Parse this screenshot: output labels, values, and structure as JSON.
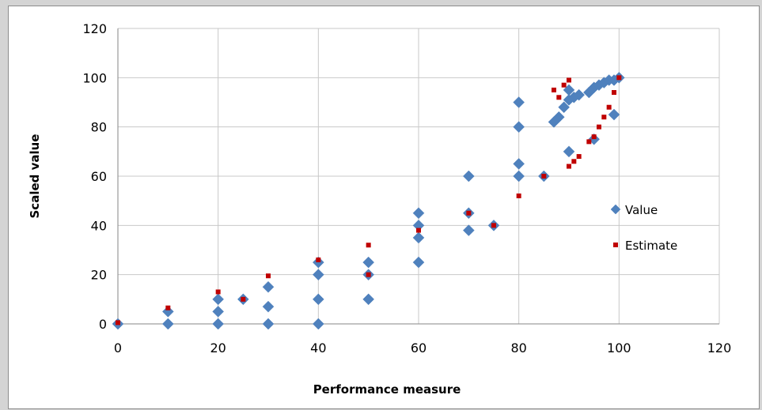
{
  "chart_data": {
    "type": "scatter",
    "title": "",
    "xlabel": "Performance measure",
    "ylabel": "Scaled value",
    "xlim": [
      0,
      120
    ],
    "ylim": [
      0,
      120
    ],
    "x_ticks": [
      "0",
      "20",
      "40",
      "60",
      "80",
      "100",
      "120"
    ],
    "y_ticks": [
      "0",
      "20",
      "40",
      "60",
      "80",
      "100",
      "120"
    ],
    "grid": true,
    "legend_position": "right",
    "series": [
      {
        "name": "Value",
        "color": "#4f81bd",
        "marker": "diamond",
        "points": [
          [
            0,
            0
          ],
          [
            10,
            0
          ],
          [
            10,
            5
          ],
          [
            20,
            0
          ],
          [
            20,
            5
          ],
          [
            20,
            10
          ],
          [
            25,
            10
          ],
          [
            30,
            0
          ],
          [
            30,
            7
          ],
          [
            30,
            15
          ],
          [
            40,
            0
          ],
          [
            40,
            10
          ],
          [
            40,
            20
          ],
          [
            40,
            25
          ],
          [
            50,
            10
          ],
          [
            50,
            20
          ],
          [
            50,
            25
          ],
          [
            60,
            25
          ],
          [
            60,
            35
          ],
          [
            60,
            40
          ],
          [
            60,
            45
          ],
          [
            70,
            38
          ],
          [
            70,
            45
          ],
          [
            70,
            60
          ],
          [
            75,
            40
          ],
          [
            80,
            60
          ],
          [
            80,
            65
          ],
          [
            80,
            80
          ],
          [
            80,
            90
          ],
          [
            85,
            60
          ],
          [
            87,
            82
          ],
          [
            88,
            84
          ],
          [
            89,
            88
          ],
          [
            90,
            70
          ],
          [
            90,
            91
          ],
          [
            90,
            95
          ],
          [
            91,
            92
          ],
          [
            92,
            93
          ],
          [
            94,
            94
          ],
          [
            95,
            75
          ],
          [
            95,
            96
          ],
          [
            96,
            97
          ],
          [
            97,
            98
          ],
          [
            98,
            99
          ],
          [
            99,
            85
          ],
          [
            99,
            99
          ],
          [
            100,
            100
          ]
        ]
      },
      {
        "name": "Estimate",
        "color": "#c00000",
        "marker": "square",
        "points": [
          [
            0,
            0.5
          ],
          [
            10,
            6.5
          ],
          [
            20,
            13
          ],
          [
            25,
            10
          ],
          [
            30,
            19.5
          ],
          [
            40,
            26
          ],
          [
            50,
            20
          ],
          [
            50,
            32
          ],
          [
            60,
            38
          ],
          [
            70,
            45
          ],
          [
            75,
            40
          ],
          [
            80,
            52
          ],
          [
            85,
            60
          ],
          [
            87,
            95
          ],
          [
            88,
            92
          ],
          [
            89,
            97
          ],
          [
            90,
            99
          ],
          [
            90,
            64
          ],
          [
            91,
            66
          ],
          [
            92,
            68
          ],
          [
            94,
            74
          ],
          [
            95,
            76
          ],
          [
            96,
            80
          ],
          [
            97,
            84
          ],
          [
            98,
            88
          ],
          [
            99,
            94
          ],
          [
            100,
            100
          ]
        ]
      }
    ]
  }
}
